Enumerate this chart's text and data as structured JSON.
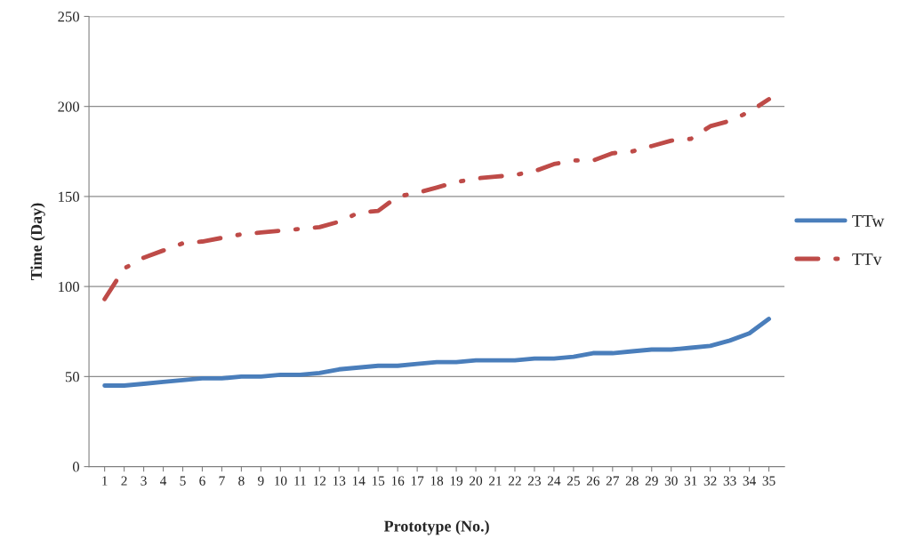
{
  "chart_data": {
    "type": "line",
    "xlabel": "Prototype (No.)",
    "ylabel": "Time (Day)",
    "categories": [
      "1",
      "2",
      "3",
      "4",
      "5",
      "6",
      "7",
      "8",
      "9",
      "10",
      "11",
      "12",
      "13",
      "14",
      "15",
      "16",
      "17",
      "18",
      "19",
      "20",
      "21",
      "22",
      "23",
      "24",
      "25",
      "26",
      "27",
      "28",
      "29",
      "30",
      "31",
      "32",
      "33",
      "34",
      "35"
    ],
    "series": [
      {
        "name": "TTw",
        "color": "#4a7ebb",
        "line_style": "solid",
        "values": [
          45,
          45,
          46,
          47,
          48,
          49,
          49,
          50,
          50,
          51,
          51,
          52,
          54,
          55,
          56,
          56,
          57,
          58,
          58,
          59,
          59,
          59,
          60,
          60,
          61,
          63,
          63,
          64,
          65,
          65,
          66,
          67,
          70,
          74,
          82
        ]
      },
      {
        "name": "TTv",
        "color": "#be4b48",
        "line_style": "dashdot",
        "values": [
          93,
          110,
          116,
          120,
          124,
          125,
          127,
          129,
          130,
          131,
          132,
          133,
          136,
          141,
          142,
          150,
          152,
          155,
          158,
          160,
          161,
          162,
          164,
          168,
          170,
          170,
          174,
          175,
          178,
          181,
          182,
          189,
          192,
          197,
          204
        ]
      }
    ],
    "ylim": [
      0,
      250
    ],
    "yticks": [
      0,
      50,
      100,
      150,
      200,
      250
    ],
    "grid": "y",
    "legend": "right",
    "marker": "none"
  }
}
